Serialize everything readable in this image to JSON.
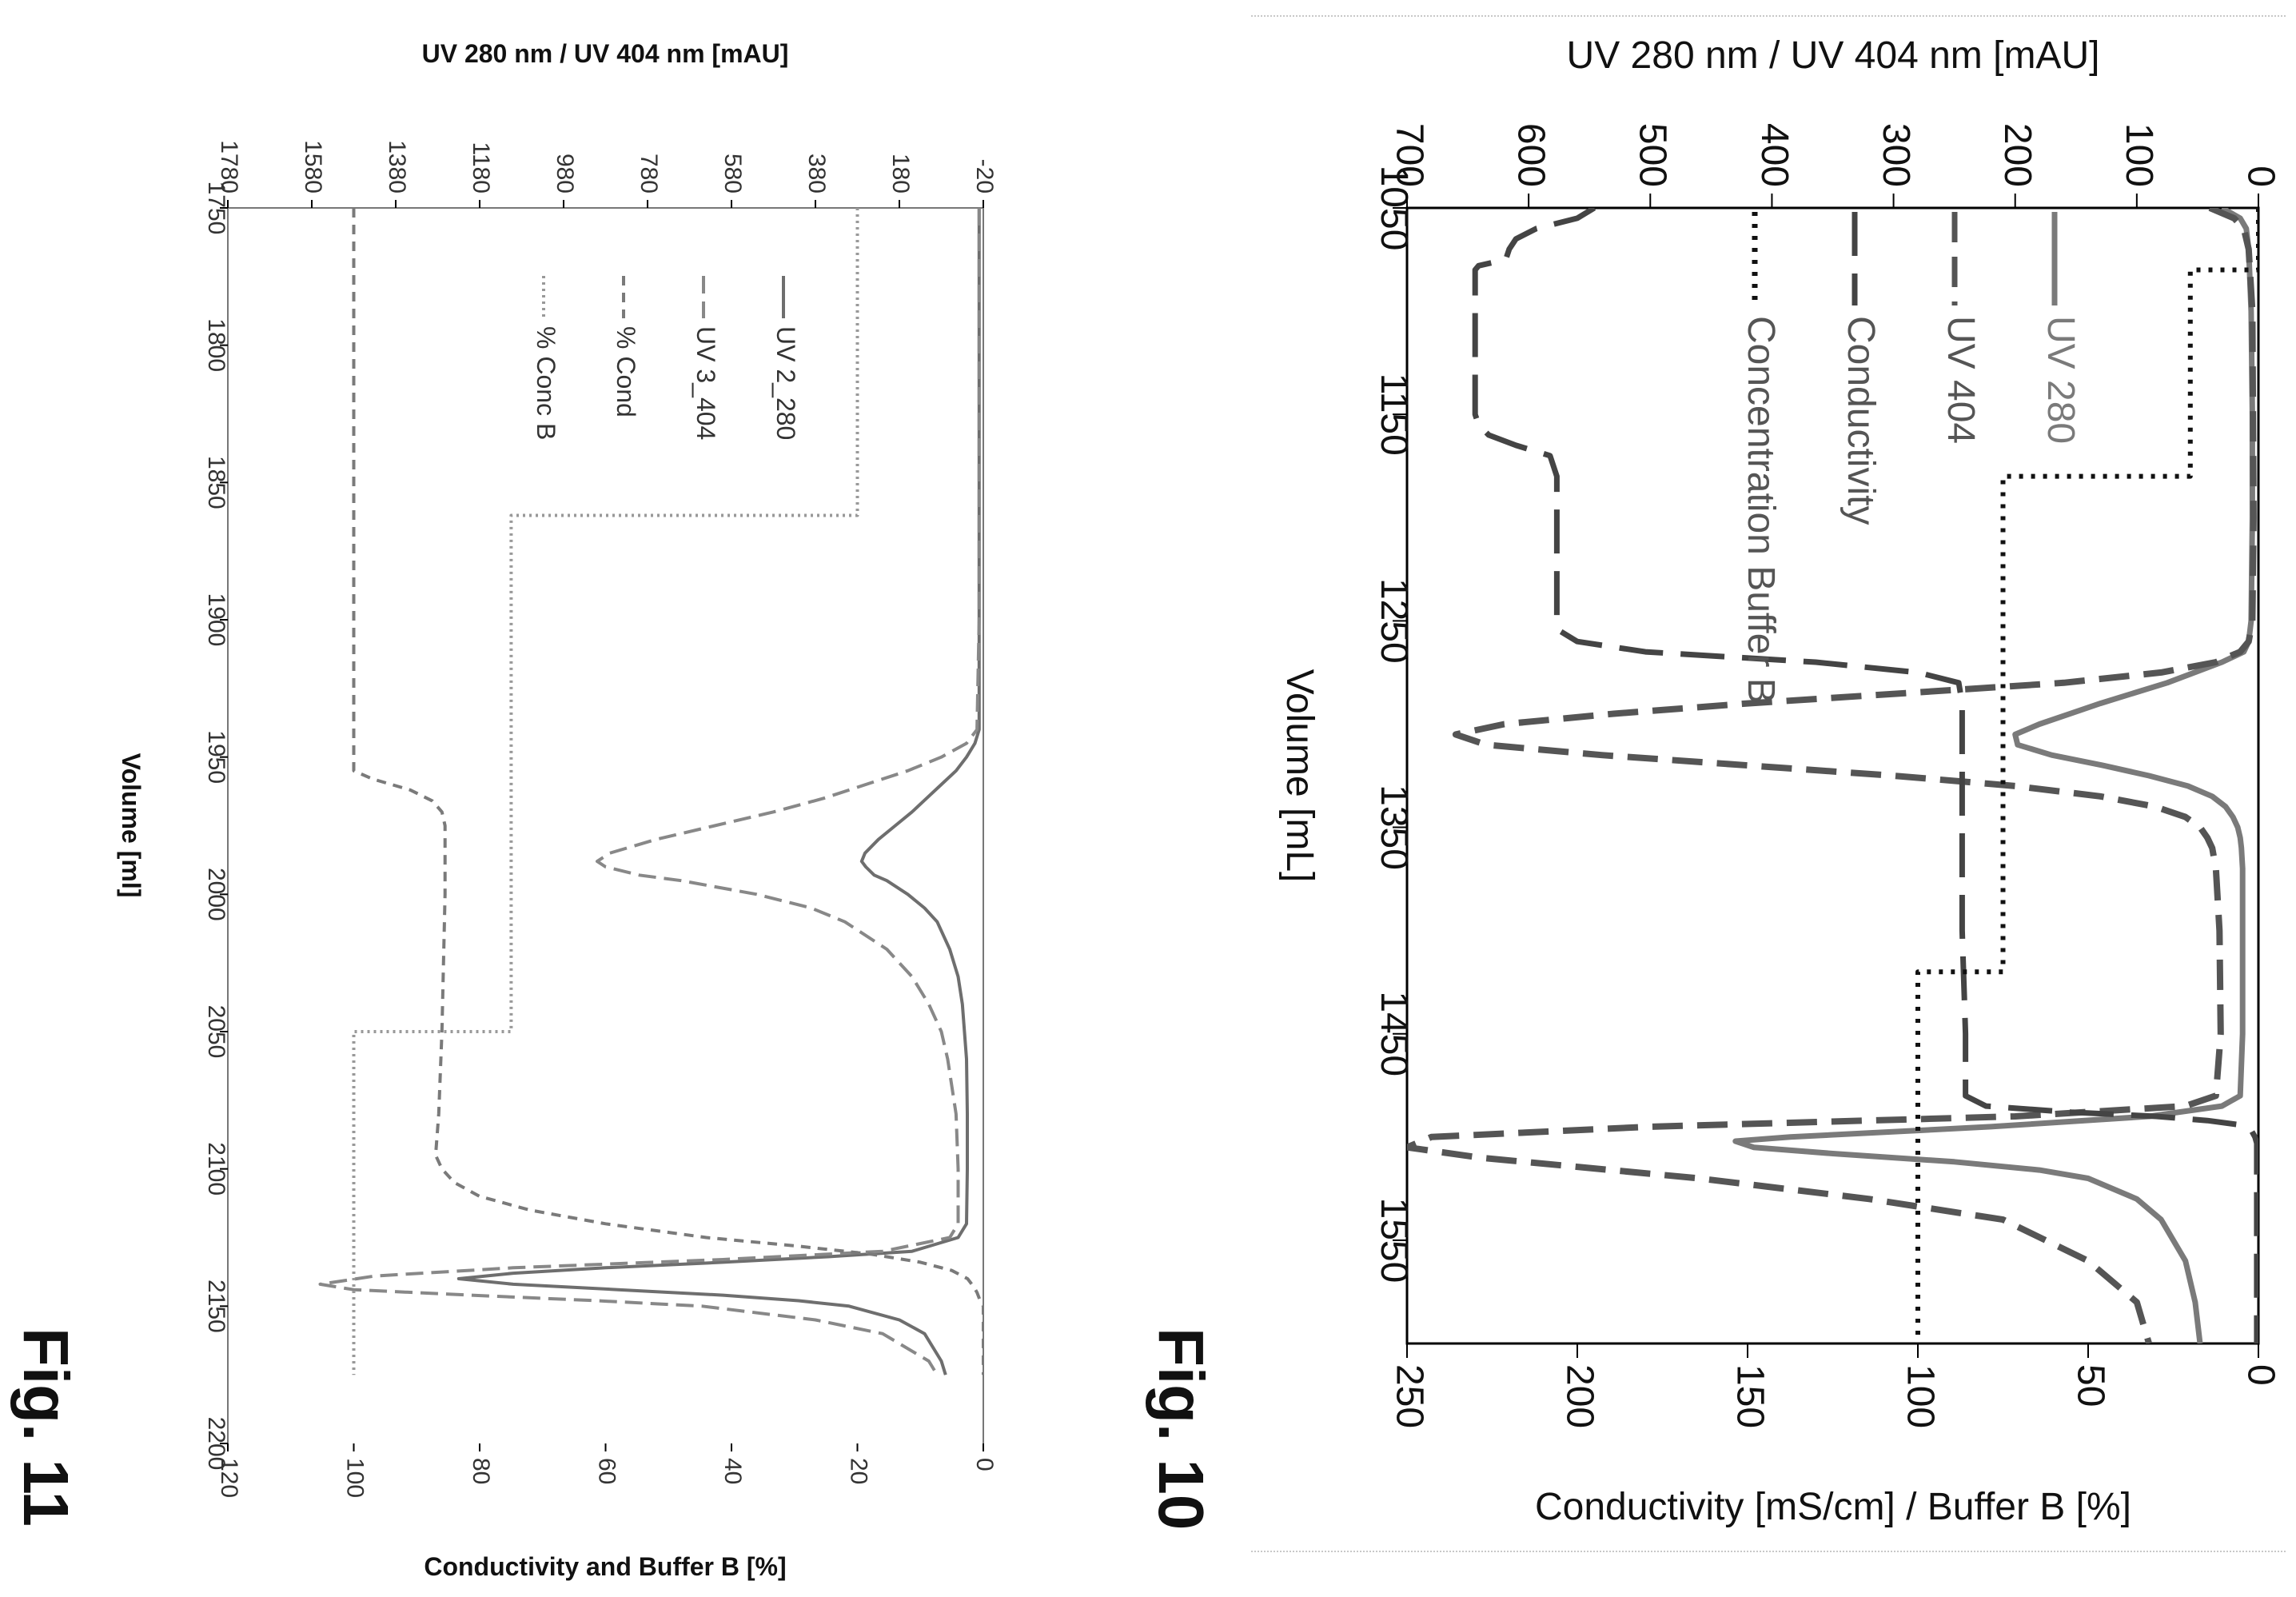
{
  "figures": [
    {
      "label": "Fig. 10"
    },
    {
      "label": "Fig. 11"
    }
  ],
  "chart_data": [
    {
      "figure": "Fig. 10",
      "type": "line",
      "xlabel": "Volume [mL]",
      "xlim": [
        1050,
        1600
      ],
      "xticks": [
        "1050",
        "1150",
        "1250",
        "1350",
        "1450",
        "1550"
      ],
      "y_uv_label": "UV 280 nm / UV 404 nm [mAU]",
      "y_uv_lim": [
        0,
        700
      ],
      "y_uv_ticks": [
        "0",
        "100",
        "200",
        "300",
        "400",
        "500",
        "600",
        "700"
      ],
      "y_cond_label": "Conductivity [mS/cm] / Buffer B [%]",
      "y_cond_lim": [
        0,
        250
      ],
      "y_cond_ticks": [
        "0",
        "50",
        "100",
        "150",
        "200",
        "250"
      ],
      "legend": [
        "UV 280",
        "UV 404",
        "Conductivity",
        "Concentration Buffer B"
      ],
      "series": [
        {
          "name": "UV 280",
          "axis": "uv",
          "color": "#7a7a7a",
          "style": "solid",
          "x": [
            1050,
            1055,
            1060,
            1070,
            1100,
            1150,
            1200,
            1250,
            1260,
            1265,
            1270,
            1280,
            1290,
            1300,
            1305,
            1310,
            1315,
            1320,
            1325,
            1330,
            1335,
            1340,
            1345,
            1350,
            1355,
            1360,
            1370,
            1400,
            1450,
            1480,
            1485,
            1490,
            1495,
            1500,
            1502,
            1505,
            1508,
            1512,
            1516,
            1520,
            1530,
            1540,
            1560,
            1580,
            1600
          ],
          "y": [
            30,
            15,
            10,
            8,
            6,
            5,
            5,
            6,
            8,
            12,
            30,
            75,
            130,
            180,
            200,
            198,
            170,
            128,
            90,
            58,
            38,
            27,
            21,
            17,
            15,
            14,
            13,
            13,
            13,
            15,
            30,
            90,
            220,
            385,
            430,
            415,
            350,
            250,
            180,
            140,
            100,
            80,
            60,
            52,
            48
          ]
        },
        {
          "name": "UV 404",
          "axis": "uv",
          "color": "#555555",
          "style": "dash",
          "x": [
            1050,
            1055,
            1060,
            1070,
            1100,
            1200,
            1250,
            1260,
            1265,
            1270,
            1275,
            1280,
            1285,
            1290,
            1295,
            1300,
            1305,
            1310,
            1315,
            1320,
            1325,
            1330,
            1335,
            1340,
            1345,
            1350,
            1355,
            1360,
            1370,
            1400,
            1450,
            1480,
            1485,
            1490,
            1495,
            1500,
            1505,
            1510,
            1520,
            1530,
            1540,
            1560,
            1580,
            1600
          ],
          "y": [
            40,
            20,
            12,
            8,
            5,
            4,
            5,
            8,
            15,
            35,
            80,
            160,
            290,
            420,
            530,
            620,
            660,
            635,
            540,
            420,
            300,
            200,
            130,
            85,
            60,
            48,
            42,
            38,
            35,
            32,
            31,
            35,
            60,
            200,
            500,
            680,
            700,
            640,
            460,
            320,
            210,
            140,
            100,
            90
          ]
        },
        {
          "name": "Conductivity",
          "axis": "cond",
          "color": "#444444",
          "style": "longdash",
          "x": [
            1050,
            1055,
            1060,
            1065,
            1070,
            1075,
            1078,
            1080,
            1150,
            1155,
            1160,
            1165,
            1170,
            1180,
            1250,
            1255,
            1260,
            1265,
            1270,
            1275,
            1280,
            1290,
            1300,
            1320,
            1340,
            1360,
            1400,
            1450,
            1480,
            1485,
            1488,
            1490,
            1492,
            1494,
            1497,
            1500,
            1503,
            1506,
            1510,
            1520,
            1550,
            1600
          ],
          "y": [
            195,
            200,
            212,
            218,
            220,
            221,
            229,
            230,
            230,
            229,
            226,
            218,
            208,
            206,
            206,
            205,
            200,
            180,
            130,
            100,
            88,
            87,
            87,
            87,
            87,
            87,
            87,
            86,
            86,
            80,
            55,
            30,
            15,
            6,
            2,
            1,
            0.5,
            0.5,
            0.5,
            0.5,
            0.5,
            0.5
          ]
        },
        {
          "name": "Concentration Buffer B",
          "axis": "cond",
          "color": "#111111",
          "style": "dot",
          "x": [
            1050,
            1080,
            1080,
            1180,
            1180,
            1420,
            1420,
            1600
          ],
          "y": [
            0,
            0,
            20,
            20,
            75,
            75,
            100,
            100
          ]
        }
      ]
    },
    {
      "figure": "Fig. 11",
      "type": "line",
      "xlabel": "Volume [ml]",
      "xlim": [
        1750,
        2200
      ],
      "xticks": [
        "1750",
        "1800",
        "1850",
        "1900",
        "1950",
        "2000",
        "2050",
        "2100",
        "2150",
        "2200"
      ],
      "y_uv_label": "UV 280 nm / UV 404 nm [mAU]",
      "y_uv_lim": [
        -20,
        1780
      ],
      "y_uv_ticks": [
        "-20",
        "180",
        "380",
        "580",
        "780",
        "980",
        "1180",
        "1380",
        "1580",
        "1780"
      ],
      "y_cond_label": "Conductivity and Buffer B [%]",
      "y_cond_lim": [
        0,
        120
      ],
      "y_cond_ticks": [
        "0",
        "20",
        "40",
        "60",
        "80",
        "100",
        "120"
      ],
      "legend": [
        "UV 2_280",
        "UV 3_404",
        "% Cond",
        "% Conc B"
      ],
      "series": [
        {
          "name": "UV 2_280",
          "axis": "uv",
          "color": "#6e6e6e",
          "style": "solid",
          "x": [
            1750,
            1800,
            1850,
            1900,
            1940,
            1945,
            1950,
            1955,
            1960,
            1965,
            1970,
            1975,
            1980,
            1985,
            1988,
            1990,
            1993,
            1995,
            2000,
            2005,
            2010,
            2020,
            2030,
            2040,
            2050,
            2060,
            2080,
            2100,
            2120,
            2125,
            2130,
            2132,
            2134,
            2136,
            2138,
            2140,
            2142,
            2144,
            2146,
            2148,
            2150,
            2155,
            2160,
            2170,
            2175
          ],
          "y": [
            -10,
            -10,
            -10,
            -10,
            -10,
            0,
            20,
            45,
            80,
            115,
            150,
            190,
            230,
            262,
            270,
            260,
            240,
            210,
            160,
            120,
            90,
            60,
            40,
            30,
            25,
            20,
            18,
            18,
            20,
            40,
            150,
            350,
            600,
            880,
            1100,
            1230,
            1100,
            850,
            600,
            420,
            300,
            180,
            120,
            80,
            70
          ]
        },
        {
          "name": "UV 3_404",
          "axis": "uv",
          "color": "#888888",
          "style": "dash",
          "x": [
            1750,
            1800,
            1850,
            1900,
            1940,
            1945,
            1950,
            1955,
            1960,
            1965,
            1970,
            1975,
            1980,
            1985,
            1988,
            1990,
            1993,
            1995,
            2000,
            2005,
            2010,
            2020,
            2030,
            2040,
            2050,
            2060,
            2080,
            2100,
            2120,
            2125,
            2130,
            2133,
            2136,
            2139,
            2142,
            2144,
            2146,
            2148,
            2150,
            2155,
            2160,
            2170,
            2175
          ],
          "y": [
            -10,
            -10,
            -10,
            -10,
            -5,
            20,
            80,
            160,
            260,
            360,
            480,
            620,
            760,
            870,
            900,
            880,
            800,
            700,
            520,
            390,
            310,
            210,
            150,
            110,
            80,
            65,
            45,
            40,
            40,
            60,
            220,
            600,
            1100,
            1430,
            1560,
            1480,
            1200,
            900,
            650,
            380,
            220,
            110,
            90
          ]
        },
        {
          "name": "% Cond",
          "axis": "cond",
          "color": "#7a7a7a",
          "style": "shortdash",
          "x": [
            1750,
            1955,
            1958,
            1962,
            1966,
            1970,
            1975,
            2000,
            2050,
            2080,
            2095,
            2100,
            2105,
            2110,
            2115,
            2120,
            2125,
            2128,
            2131,
            2134,
            2137,
            2140,
            2143,
            2145,
            2148,
            2150,
            2175
          ],
          "y": [
            100,
            100,
            97,
            91,
            87.5,
            86,
            85.5,
            85.5,
            86,
            86.5,
            87,
            86,
            84,
            80,
            72,
            60,
            44,
            30,
            18,
            10,
            5,
            2.5,
            1.5,
            1,
            0.5,
            0,
            0
          ]
        },
        {
          "name": "% Conc B",
          "axis": "cond",
          "color": "#999999",
          "style": "dot",
          "x": [
            1750,
            1862,
            1862,
            2050,
            2050,
            2175
          ],
          "y": [
            20,
            20,
            75,
            75,
            100,
            100
          ]
        }
      ]
    }
  ]
}
